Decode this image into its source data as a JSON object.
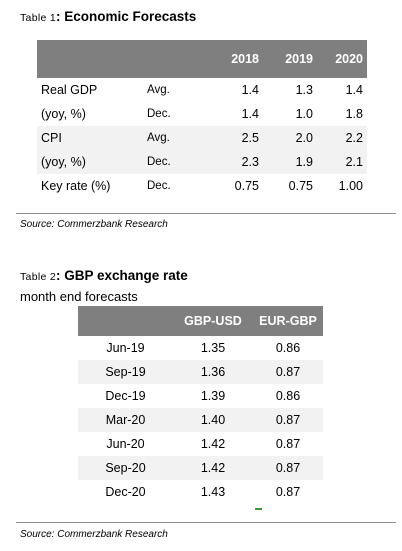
{
  "table1": {
    "label": "Table 1",
    "title": "Economic Forecasts",
    "years": [
      "2018",
      "2019",
      "2020"
    ],
    "rows": [
      {
        "name": "Real GDP",
        "sub": "(yoy, %)",
        "kind1": "Avg.",
        "v1": [
          "1.4",
          "1.3",
          "1.4"
        ],
        "kind2": "Dec.",
        "v2": [
          "1.4",
          "1.0",
          "1.8"
        ]
      },
      {
        "name": "CPI",
        "sub": "(yoy, %)",
        "kind1": "Avg.",
        "v1": [
          "2.5",
          "2.0",
          "2.2"
        ],
        "kind2": "Dec.",
        "v2": [
          "2.3",
          "1.9",
          "2.1"
        ]
      }
    ],
    "key_rate": {
      "name": "Key rate (%)",
      "kind": "Dec.",
      "values": [
        "0.75",
        "0.75",
        "1.00"
      ]
    },
    "source": "Source: Commerzbank Research"
  },
  "table2": {
    "label": "Table 2",
    "title": "GBP exchange rate",
    "subtitle": "month end forecasts",
    "headers": [
      "",
      "GBP-USD",
      "EUR-GBP"
    ],
    "rows": [
      [
        "Jun-19",
        "1.35",
        "0.86"
      ],
      [
        "Sep-19",
        "1.36",
        "0.87"
      ],
      [
        "Dec-19",
        "1.39",
        "0.86"
      ],
      [
        "Mar-20",
        "1.40",
        "0.87"
      ],
      [
        "Jun-20",
        "1.42",
        "0.87"
      ],
      [
        "Sep-20",
        "1.42",
        "0.87"
      ],
      [
        "Dec-20",
        "1.43",
        "0.87"
      ]
    ],
    "source": "Source: Commerzbank Research"
  }
}
